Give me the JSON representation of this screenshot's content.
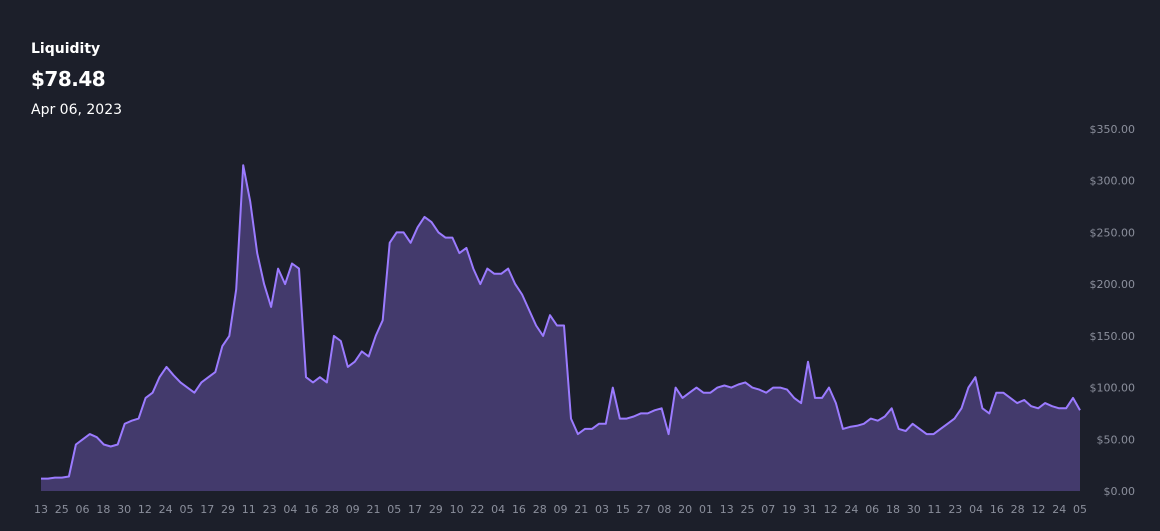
{
  "header": {
    "title": "Liquidity",
    "value": "$78.48",
    "date": "Apr 06, 2023"
  },
  "colors": {
    "background": "#1c1f2a",
    "line": "#9b7bff",
    "area": "#433a6c",
    "tick": "#8b8f9c"
  },
  "chart_data": {
    "type": "area",
    "title": "Liquidity",
    "ylim": [
      0,
      350
    ],
    "y_ticks": [
      "$0.00",
      "$50.00",
      "$100.00",
      "$150.00",
      "$200.00",
      "$250.00",
      "$300.00",
      "$350.00"
    ],
    "y_tick_values": [
      0,
      50,
      100,
      150,
      200,
      250,
      300,
      350
    ],
    "x_ticks": [
      "13",
      "25",
      "06",
      "18",
      "30",
      "12",
      "24",
      "05",
      "17",
      "29",
      "11",
      "23",
      "04",
      "16",
      "28",
      "09",
      "21",
      "05",
      "17",
      "29",
      "10",
      "22",
      "04",
      "16",
      "28",
      "09",
      "21",
      "03",
      "15",
      "27",
      "08",
      "20",
      "01",
      "13",
      "25",
      "07",
      "19",
      "31",
      "12",
      "24",
      "06",
      "18",
      "30",
      "11",
      "23",
      "04",
      "16",
      "28",
      "12",
      "24",
      "05"
    ],
    "series": [
      {
        "values": [
          12,
          12,
          13,
          13,
          14,
          45,
          50,
          55,
          52,
          45,
          43,
          45,
          65,
          68,
          70,
          90,
          95,
          110,
          120,
          112,
          105,
          100,
          95,
          105,
          110,
          115,
          140,
          150,
          195,
          315,
          280,
          230,
          200,
          178,
          215,
          200,
          220,
          215,
          110,
          105,
          110,
          105,
          150,
          145,
          120,
          125,
          135,
          130,
          150,
          165,
          240,
          250,
          250,
          240,
          255,
          265,
          260,
          250,
          245,
          245,
          230,
          235,
          215,
          200,
          215,
          210,
          210,
          215,
          200,
          190,
          175,
          160,
          150,
          170,
          160,
          160,
          70,
          55,
          60,
          60,
          65,
          65,
          100,
          70,
          70,
          72,
          75,
          75,
          78,
          80,
          55,
          100,
          90,
          95,
          100,
          95,
          95,
          100,
          102,
          100,
          103,
          105,
          100,
          98,
          95,
          100,
          100,
          98,
          90,
          85,
          125,
          90,
          90,
          100,
          85,
          60,
          62,
          63,
          65,
          70,
          68,
          72,
          80,
          60,
          58,
          65,
          60,
          55,
          55,
          60,
          65,
          70,
          80,
          100,
          110,
          80,
          75,
          95,
          95,
          90,
          85,
          88,
          82,
          80,
          85,
          82,
          80,
          80,
          90,
          78
        ]
      }
    ]
  }
}
